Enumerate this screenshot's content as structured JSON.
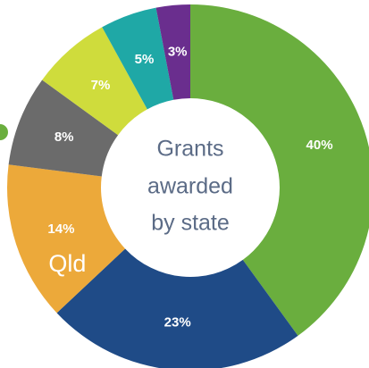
{
  "chart_data": {
    "type": "donut",
    "title_lines": [
      "Grants",
      "awarded",
      "by state"
    ],
    "categories": [
      null,
      null,
      "Qld",
      null,
      null,
      null,
      null
    ],
    "values": [
      40,
      23,
      14,
      8,
      7,
      5,
      3
    ],
    "value_labels": [
      "40%",
      "23%",
      "14%",
      "8%",
      "7%",
      "5%",
      "3%"
    ],
    "colors": [
      "#6aae3e",
      "#1f4b87",
      "#eca93a",
      "#6b6b6b",
      "#cfdc3c",
      "#1fa8a6",
      "#6a2e8e"
    ]
  }
}
